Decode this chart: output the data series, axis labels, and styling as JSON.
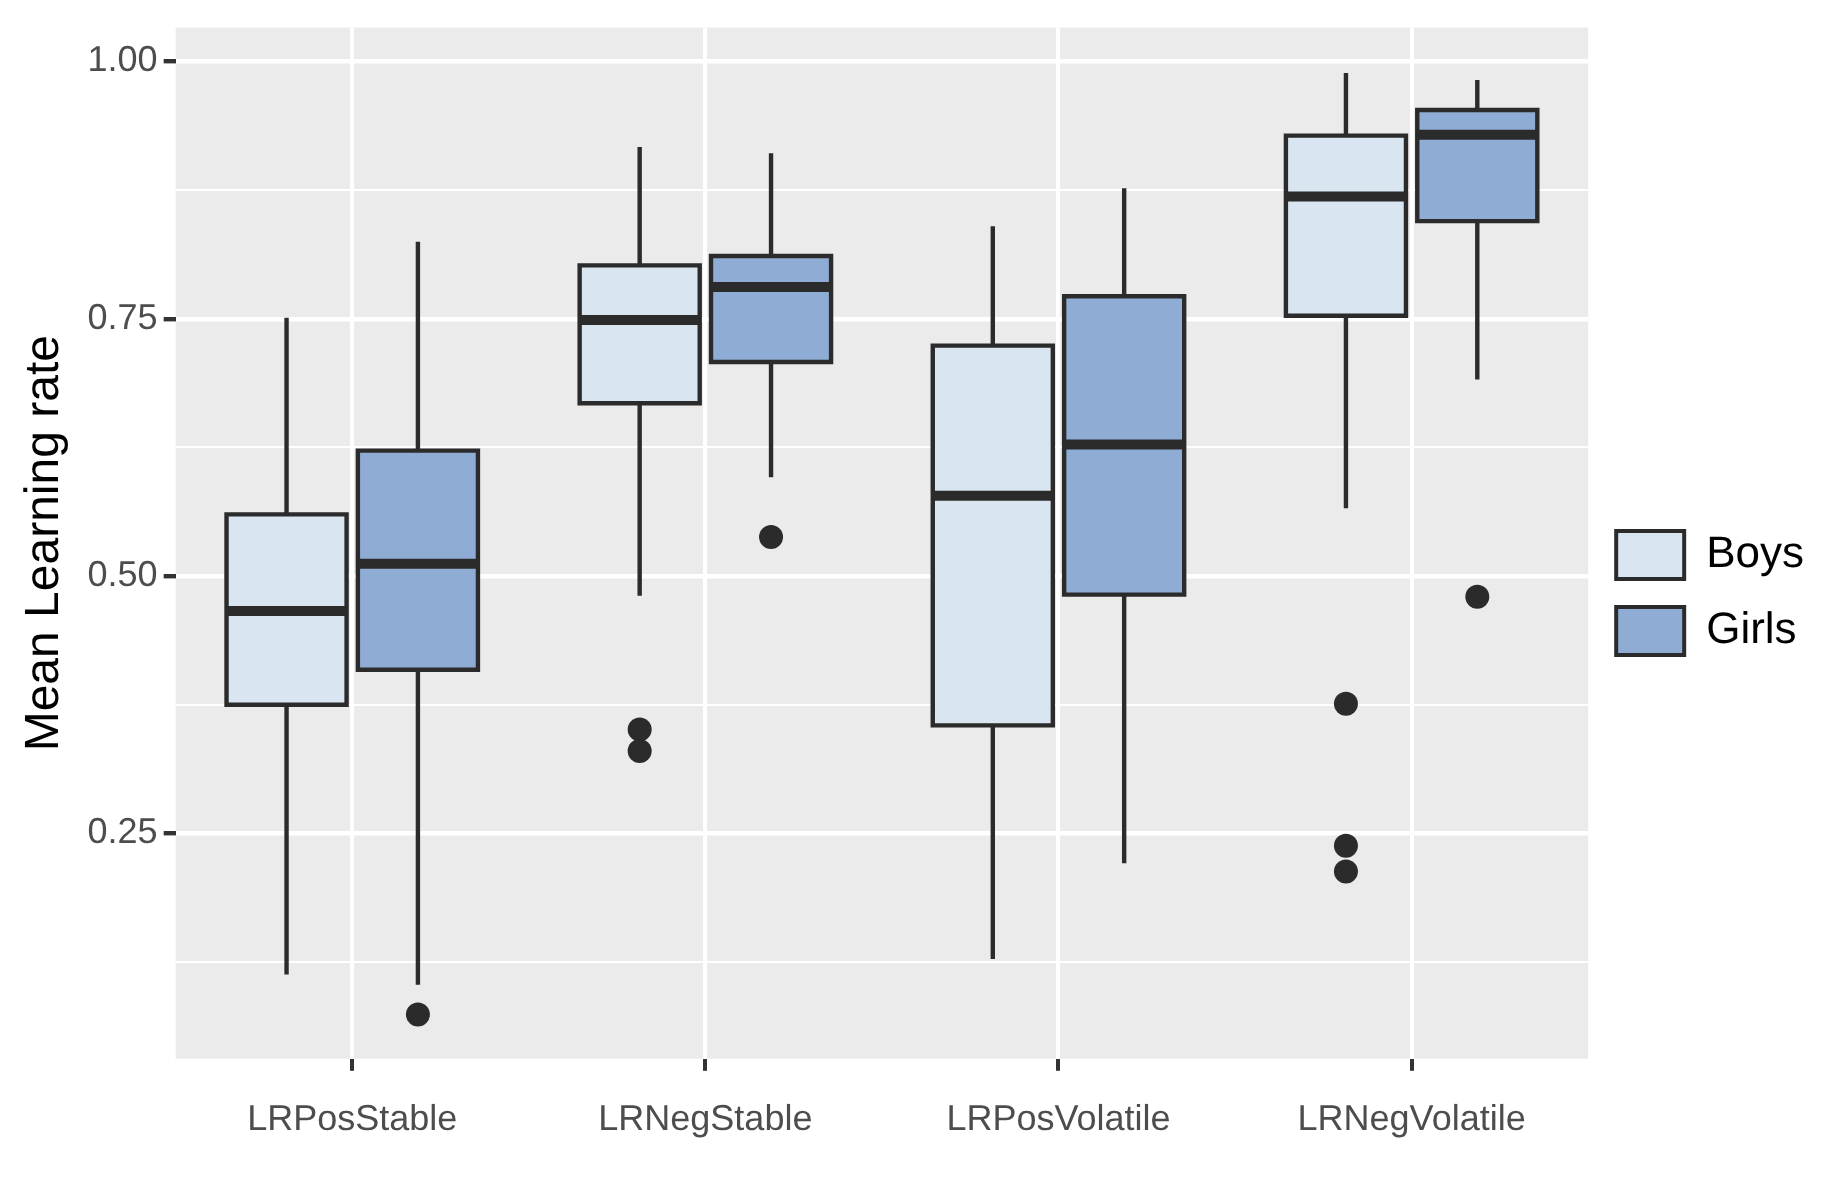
{
  "chart_data": {
    "type": "box",
    "ylabel": "Mean Learning rate",
    "categories": [
      "LRPosStable",
      "LRNegStable",
      "LRPosVolatile",
      "LRNegVolatile"
    ],
    "series": [
      {
        "name": "Boys",
        "color": "#d9e6f1",
        "boxes": [
          {
            "low": 0.113,
            "q1": 0.375,
            "median": 0.466,
            "q3": 0.56,
            "high": 0.751
          },
          {
            "low": 0.481,
            "q1": 0.668,
            "median": 0.749,
            "q3": 0.802,
            "high": 0.917,
            "outliers": [
              0.351,
              0.33
            ]
          },
          {
            "low": 0.128,
            "q1": 0.355,
            "median": 0.578,
            "q3": 0.724,
            "high": 0.84
          },
          {
            "low": 0.566,
            "q1": 0.753,
            "median": 0.869,
            "q3": 0.928,
            "high": 0.989,
            "outliers": [
              0.376,
              0.238,
              0.213
            ]
          }
        ]
      },
      {
        "name": "Girls",
        "color": "#8fadd4",
        "boxes": [
          {
            "low": 0.103,
            "q1": 0.409,
            "median": 0.512,
            "q3": 0.622,
            "high": 0.825,
            "outliers": [
              0.074
            ]
          },
          {
            "low": 0.596,
            "q1": 0.708,
            "median": 0.781,
            "q3": 0.811,
            "high": 0.911,
            "outliers": [
              0.538
            ]
          },
          {
            "low": 0.221,
            "q1": 0.482,
            "median": 0.628,
            "q3": 0.772,
            "high": 0.877
          },
          {
            "low": 0.691,
            "q1": 0.845,
            "median": 0.929,
            "q3": 0.953,
            "high": 0.982,
            "outliers": [
              0.48
            ]
          }
        ]
      }
    ],
    "ylim": [
      0.031,
      1.033
    ],
    "yticks": [
      {
        "value": 0.125,
        "label": null
      },
      {
        "value": 0.25,
        "label": "0.25"
      },
      {
        "value": 0.375,
        "label": null
      },
      {
        "value": 0.5,
        "label": "0.50"
      },
      {
        "value": 0.625,
        "label": null
      },
      {
        "value": 0.75,
        "label": "0.75"
      },
      {
        "value": 0.875,
        "label": null
      },
      {
        "value": 1,
        "label": "1.00"
      }
    ],
    "grid": true,
    "legend": "right"
  }
}
